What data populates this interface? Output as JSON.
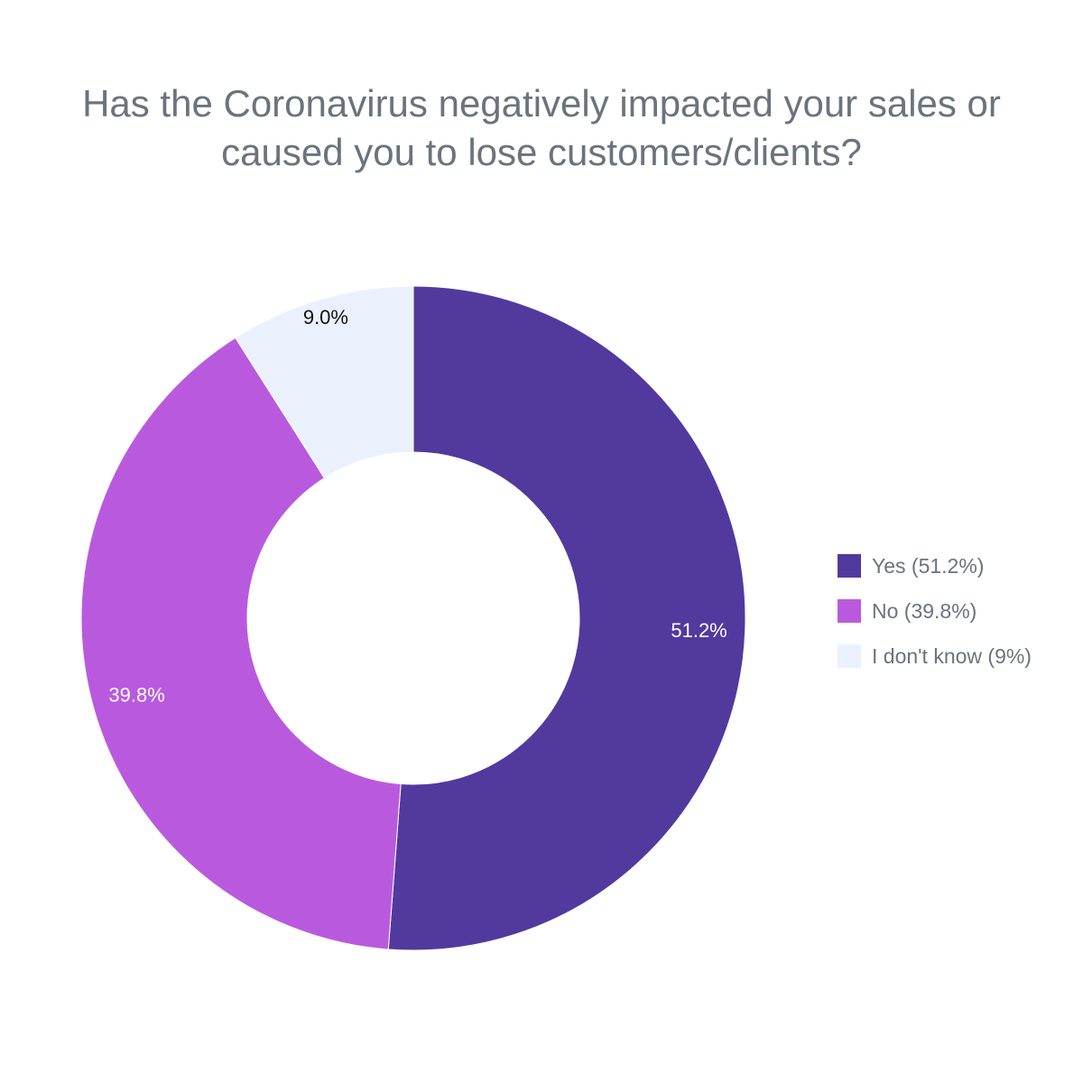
{
  "chart_data": {
    "type": "pie",
    "subtype": "donut",
    "title": "Has the Coronavirus negatively impacted your sales or caused you to lose customers/clients?",
    "title_lines": [
      "Has the Coronavirus negatively impacted your sales or",
      "caused you to lose customers/clients?"
    ],
    "categories": [
      "Yes",
      "No",
      "I don't know"
    ],
    "values": [
      51.2,
      39.8,
      9.0
    ],
    "slice_labels": [
      "51.2%",
      "39.8%",
      "9.0%"
    ],
    "colors": [
      "#52399e",
      "#b95ade",
      "#ebf0fd"
    ],
    "label_colors": [
      "#ffffff",
      "#ffffff",
      "#111111"
    ],
    "legend": {
      "placement": "right",
      "entries": [
        "Yes (51.2%)",
        "No (39.8%)",
        "I don't know (9%)"
      ]
    }
  }
}
